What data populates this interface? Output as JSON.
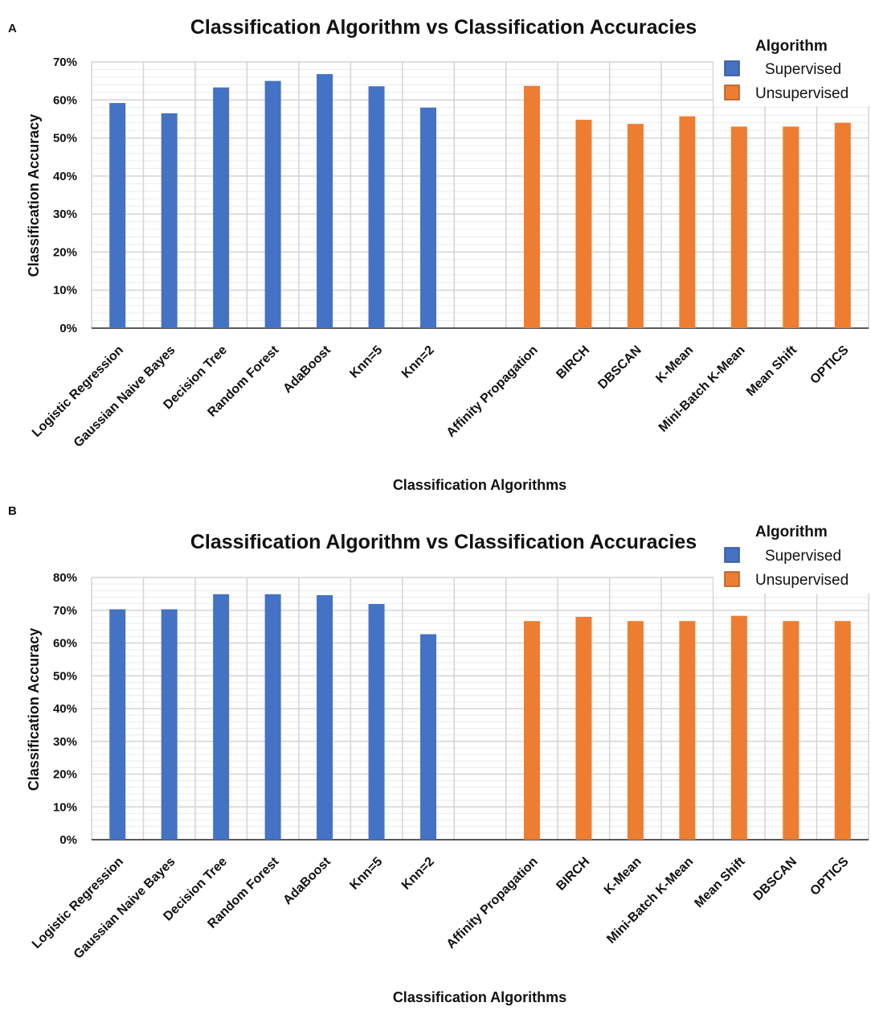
{
  "colors": {
    "supervised": "#4472C4",
    "unsupervised": "#ED7D31",
    "grid_major": "#d4d4d4",
    "grid_minor": "#ececec",
    "axis": "#222222"
  },
  "chart_data": [
    {
      "panel": "A",
      "type": "bar",
      "title": "Classification Algorithm vs Classification Accuracies",
      "xlabel": "Classification Algorithms",
      "ylabel": "Classification Accuracy",
      "ylim": [
        0,
        70
      ],
      "yticks": [
        "0%",
        "10%",
        "20%",
        "30%",
        "40%",
        "50%",
        "60%",
        "70%"
      ],
      "legend": {
        "title": "Algorithm",
        "position": "top-right",
        "entries": [
          "Supervised",
          "Unsupervised"
        ]
      },
      "categories": [
        "Logistic Regression",
        "Gaussian Naive Bayes",
        "Decision Tree",
        "Random Forest",
        "AdaBoost",
        "Knn=5",
        "Knn=2",
        "",
        "Affinity Propagation",
        "BIRCH",
        "DBSCAN",
        "K-Mean",
        "Mini-Batch K-Mean",
        "Mean Shift",
        "OPTICS"
      ],
      "series": [
        {
          "name": "Supervised",
          "values": [
            59.2,
            56.5,
            63.3,
            65.0,
            66.8,
            63.6,
            58.0,
            null,
            null,
            null,
            null,
            null,
            null,
            null,
            null
          ]
        },
        {
          "name": "Unsupervised",
          "values": [
            null,
            null,
            null,
            null,
            null,
            null,
            null,
            null,
            63.7,
            54.8,
            53.7,
            55.7,
            53.0,
            53.0,
            54.0
          ]
        }
      ]
    },
    {
      "panel": "B",
      "type": "bar",
      "title": "Classification Algorithm vs Classification Accuracies",
      "xlabel": "Classification Algorithms",
      "ylabel": "Classification Accuracy",
      "ylim": [
        0,
        80
      ],
      "yticks": [
        "0%",
        "10%",
        "20%",
        "30%",
        "40%",
        "50%",
        "60%",
        "70%",
        "80%"
      ],
      "legend": {
        "title": "Algorithm",
        "position": "top-right",
        "entries": [
          "Supervised",
          "Unsupervised"
        ]
      },
      "categories": [
        "Logistic Regression",
        "Gaussian Naive Bayes",
        "Decision Tree",
        "Random Forest",
        "AdaBoost",
        "Knn=5",
        "Knn=2",
        "",
        "Affinity Propagation",
        "BIRCH",
        "K-Mean",
        "Mini-Batch K-Mean",
        "Mean Shift",
        "DBSCAN",
        "OPTICS"
      ],
      "series": [
        {
          "name": "Supervised",
          "values": [
            70.3,
            70.3,
            74.9,
            74.9,
            74.6,
            71.9,
            62.7,
            null,
            null,
            null,
            null,
            null,
            null,
            null,
            null
          ]
        },
        {
          "name": "Unsupervised",
          "values": [
            null,
            null,
            null,
            null,
            null,
            null,
            null,
            null,
            66.7,
            68.0,
            66.7,
            66.7,
            68.3,
            66.7,
            66.7
          ]
        }
      ]
    }
  ]
}
